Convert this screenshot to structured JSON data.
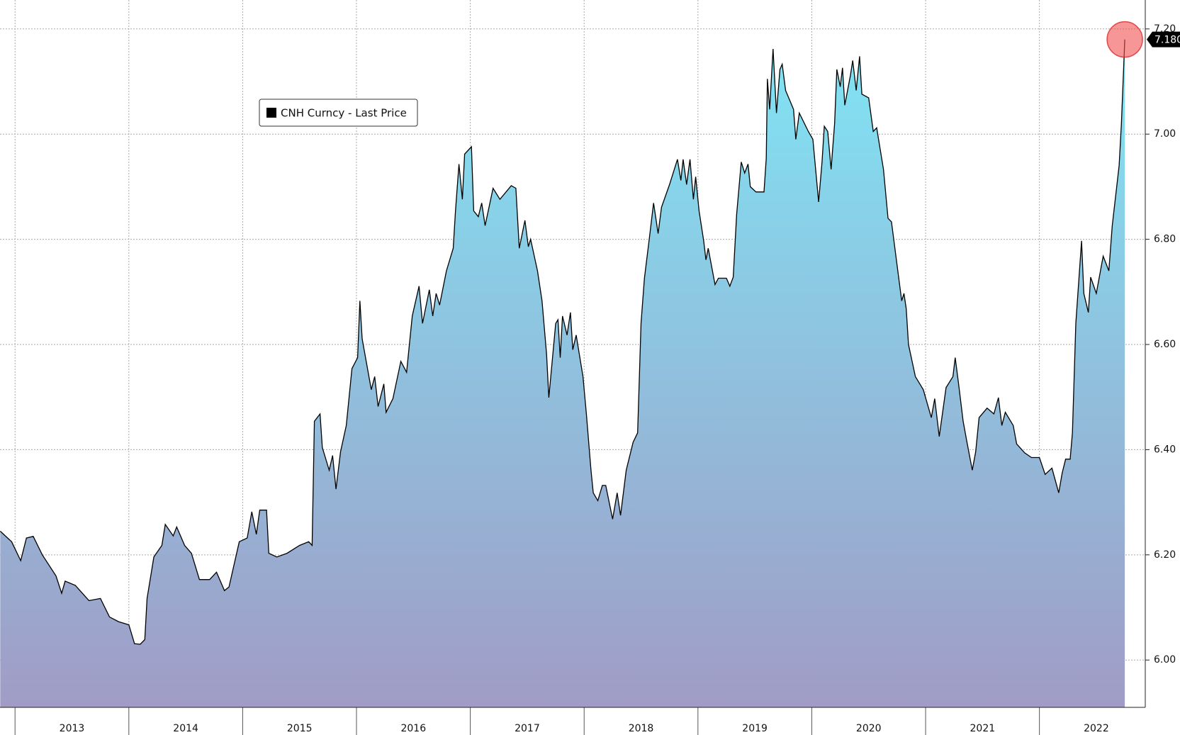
{
  "chart_data": {
    "type": "area",
    "x": [
      2012.87,
      2012.97,
      2013.05,
      2013.1,
      2013.16,
      2013.24,
      2013.36,
      2013.41,
      2013.44,
      2013.53,
      2013.65,
      2013.75,
      2013.83,
      2013.91,
      2014.0,
      2014.05,
      2014.1,
      2014.14,
      2014.16,
      2014.22,
      2014.29,
      2014.32,
      2014.39,
      2014.42,
      2014.49,
      2014.55,
      2014.62,
      2014.71,
      2014.77,
      2014.84,
      2014.88,
      2014.97,
      2015.04,
      2015.08,
      2015.12,
      2015.15,
      2015.21,
      2015.23,
      2015.3,
      2015.39,
      2015.5,
      2015.58,
      2015.61,
      2015.63,
      2015.68,
      2015.7,
      2015.76,
      2015.79,
      2015.82,
      2015.86,
      2015.91,
      2015.96,
      2016.01,
      2016.03,
      2016.05,
      2016.13,
      2016.16,
      2016.19,
      2016.24,
      2016.26,
      2016.32,
      2016.39,
      2016.44,
      2016.49,
      2016.55,
      2016.58,
      2016.64,
      2016.67,
      2016.7,
      2016.73,
      2016.79,
      2016.85,
      2016.87,
      2016.9,
      2016.93,
      2016.95,
      2017.01,
      2017.03,
      2017.07,
      2017.1,
      2017.13,
      2017.2,
      2017.26,
      2017.36,
      2017.4,
      2017.43,
      2017.48,
      2017.51,
      2017.53,
      2017.59,
      2017.63,
      2017.67,
      2017.69,
      2017.75,
      2017.77,
      2017.79,
      2017.81,
      2017.85,
      2017.88,
      2017.9,
      2017.93,
      2017.99,
      2018.02,
      2018.06,
      2018.08,
      2018.12,
      2018.16,
      2018.19,
      2018.25,
      2018.29,
      2018.32,
      2018.37,
      2018.43,
      2018.47,
      2018.5,
      2018.53,
      2018.57,
      2018.61,
      2018.65,
      2018.68,
      2018.75,
      2018.82,
      2018.85,
      2018.87,
      2018.9,
      2018.93,
      2018.96,
      2018.98,
      2019.01,
      2019.05,
      2019.07,
      2019.09,
      2019.15,
      2019.18,
      2019.25,
      2019.28,
      2019.31,
      2019.34,
      2019.38,
      2019.41,
      2019.44,
      2019.46,
      2019.51,
      2019.58,
      2019.6,
      2019.61,
      2019.63,
      2019.66,
      2019.69,
      2019.72,
      2019.74,
      2019.77,
      2019.84,
      2019.86,
      2019.89,
      2019.97,
      2020.01,
      2020.06,
      2020.09,
      2020.11,
      2020.14,
      2020.17,
      2020.2,
      2020.22,
      2020.25,
      2020.27,
      2020.29,
      2020.34,
      2020.36,
      2020.39,
      2020.42,
      2020.44,
      2020.5,
      2020.54,
      2020.57,
      2020.63,
      2020.67,
      2020.7,
      2020.73,
      2020.79,
      2020.81,
      2020.83,
      2020.85,
      2020.91,
      2020.98,
      2021.05,
      2021.08,
      2021.12,
      2021.18,
      2021.24,
      2021.26,
      2021.29,
      2021.33,
      2021.36,
      2021.41,
      2021.44,
      2021.47,
      2021.54,
      2021.6,
      2021.64,
      2021.67,
      2021.7,
      2021.77,
      2021.8,
      2021.87,
      2021.93,
      2022.0,
      2022.05,
      2022.11,
      2022.17,
      2022.2,
      2022.23,
      2022.27,
      2022.29,
      2022.32,
      2022.37,
      2022.39,
      2022.43,
      2022.45,
      2022.5,
      2022.56,
      2022.61,
      2022.64,
      2022.7,
      2022.72,
      2022.75
    ],
    "series": [
      {
        "name": "CNH Curncy - Last Price",
        "color": "#000000",
        "values": [
          6.245,
          6.225,
          6.189,
          6.232,
          6.235,
          6.2,
          6.16,
          6.127,
          6.15,
          6.142,
          6.113,
          6.117,
          6.082,
          6.073,
          6.067,
          6.031,
          6.03,
          6.039,
          6.117,
          6.196,
          6.218,
          6.258,
          6.236,
          6.253,
          6.218,
          6.203,
          6.153,
          6.153,
          6.167,
          6.132,
          6.139,
          6.225,
          6.232,
          6.282,
          6.239,
          6.285,
          6.285,
          6.203,
          6.196,
          6.203,
          6.218,
          6.225,
          6.218,
          6.454,
          6.468,
          6.404,
          6.361,
          6.389,
          6.325,
          6.396,
          6.446,
          6.554,
          6.575,
          6.683,
          6.611,
          6.514,
          6.539,
          6.482,
          6.525,
          6.471,
          6.497,
          6.568,
          6.547,
          6.654,
          6.711,
          6.64,
          6.704,
          6.654,
          6.697,
          6.675,
          6.74,
          6.783,
          6.854,
          6.943,
          6.876,
          6.962,
          6.976,
          6.854,
          6.843,
          6.869,
          6.826,
          6.897,
          6.876,
          6.902,
          6.897,
          6.783,
          6.836,
          6.786,
          6.8,
          6.74,
          6.683,
          6.582,
          6.499,
          6.64,
          6.647,
          6.575,
          6.654,
          6.618,
          6.661,
          6.59,
          6.618,
          6.539,
          6.468,
          6.361,
          6.318,
          6.303,
          6.332,
          6.332,
          6.268,
          6.318,
          6.275,
          6.361,
          6.414,
          6.432,
          6.64,
          6.726,
          6.797,
          6.869,
          6.811,
          6.861,
          6.904,
          6.952,
          6.912,
          6.952,
          6.904,
          6.952,
          6.876,
          6.919,
          6.854,
          6.797,
          6.761,
          6.783,
          6.714,
          6.726,
          6.726,
          6.711,
          6.728,
          6.847,
          6.947,
          6.926,
          6.943,
          6.9,
          6.89,
          6.89,
          6.954,
          7.105,
          7.047,
          7.162,
          7.04,
          7.123,
          7.133,
          7.083,
          7.047,
          6.99,
          7.04,
          7.005,
          6.99,
          6.871,
          6.947,
          7.015,
          7.005,
          6.933,
          7.019,
          7.123,
          7.09,
          7.126,
          7.055,
          7.112,
          7.14,
          7.083,
          7.148,
          7.076,
          7.069,
          7.005,
          7.012,
          6.933,
          6.84,
          6.833,
          6.783,
          6.683,
          6.697,
          6.668,
          6.6,
          6.539,
          6.514,
          6.461,
          6.497,
          6.425,
          6.518,
          6.539,
          6.575,
          6.525,
          6.454,
          6.418,
          6.361,
          6.396,
          6.461,
          6.479,
          6.468,
          6.499,
          6.446,
          6.471,
          6.446,
          6.411,
          6.394,
          6.385,
          6.385,
          6.353,
          6.365,
          6.318,
          6.356,
          6.382,
          6.382,
          6.432,
          6.64,
          6.797,
          6.697,
          6.661,
          6.728,
          6.697,
          6.768,
          6.74,
          6.826,
          6.94,
          7.019,
          7.18
        ]
      }
    ],
    "last_value_label": "7.180",
    "fill_gradient": [
      "#80e4f4",
      "#a09cc6"
    ],
    "xlim": [
      2012.868,
      2022.93
    ],
    "xticks": [
      2013,
      2014,
      2015,
      2016,
      2017,
      2018,
      2019,
      2020,
      2021,
      2022
    ],
    "ylim": [
      5.91,
      7.255
    ],
    "yticks": [
      {
        "value": 6,
        "label": "6.00"
      },
      {
        "value": 6.2,
        "label": "6.20"
      },
      {
        "value": 6.4,
        "label": "6.40"
      },
      {
        "value": 6.6,
        "label": "6.60"
      },
      {
        "value": 6.8,
        "label": "6.80"
      },
      {
        "value": 7,
        "label": "7.00"
      },
      {
        "value": 7.2,
        "label": "7.20"
      }
    ],
    "grid": true
  }
}
